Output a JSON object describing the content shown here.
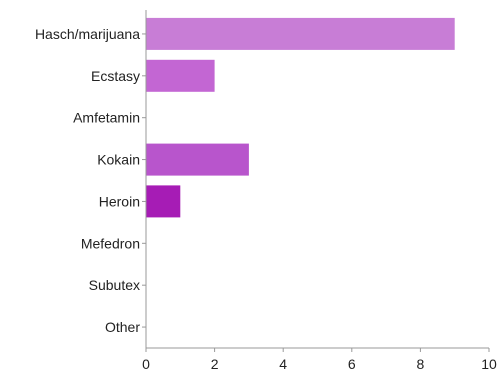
{
  "chart_data": {
    "type": "bar",
    "orientation": "horizontal",
    "categories": [
      "Hasch/marijuana",
      "Ecstasy",
      "Amfetamin",
      "Kokain",
      "Heroin",
      "Mefedron",
      "Subutex",
      "Other"
    ],
    "values": [
      9,
      2,
      0,
      3,
      1,
      0,
      0,
      0
    ],
    "bar_colors": [
      "#c87dd6",
      "#c366d3",
      "#bd66d0",
      "#b855cc",
      "#a61cb5",
      "#b855cc",
      "#b855cc",
      "#b855cc"
    ],
    "title": "",
    "xlabel": "",
    "ylabel": "",
    "xlim": [
      0,
      10
    ],
    "xticks": [
      0,
      2,
      4,
      6,
      8,
      10
    ],
    "grid": false,
    "legend": "none",
    "axis_color": "#999999"
  }
}
